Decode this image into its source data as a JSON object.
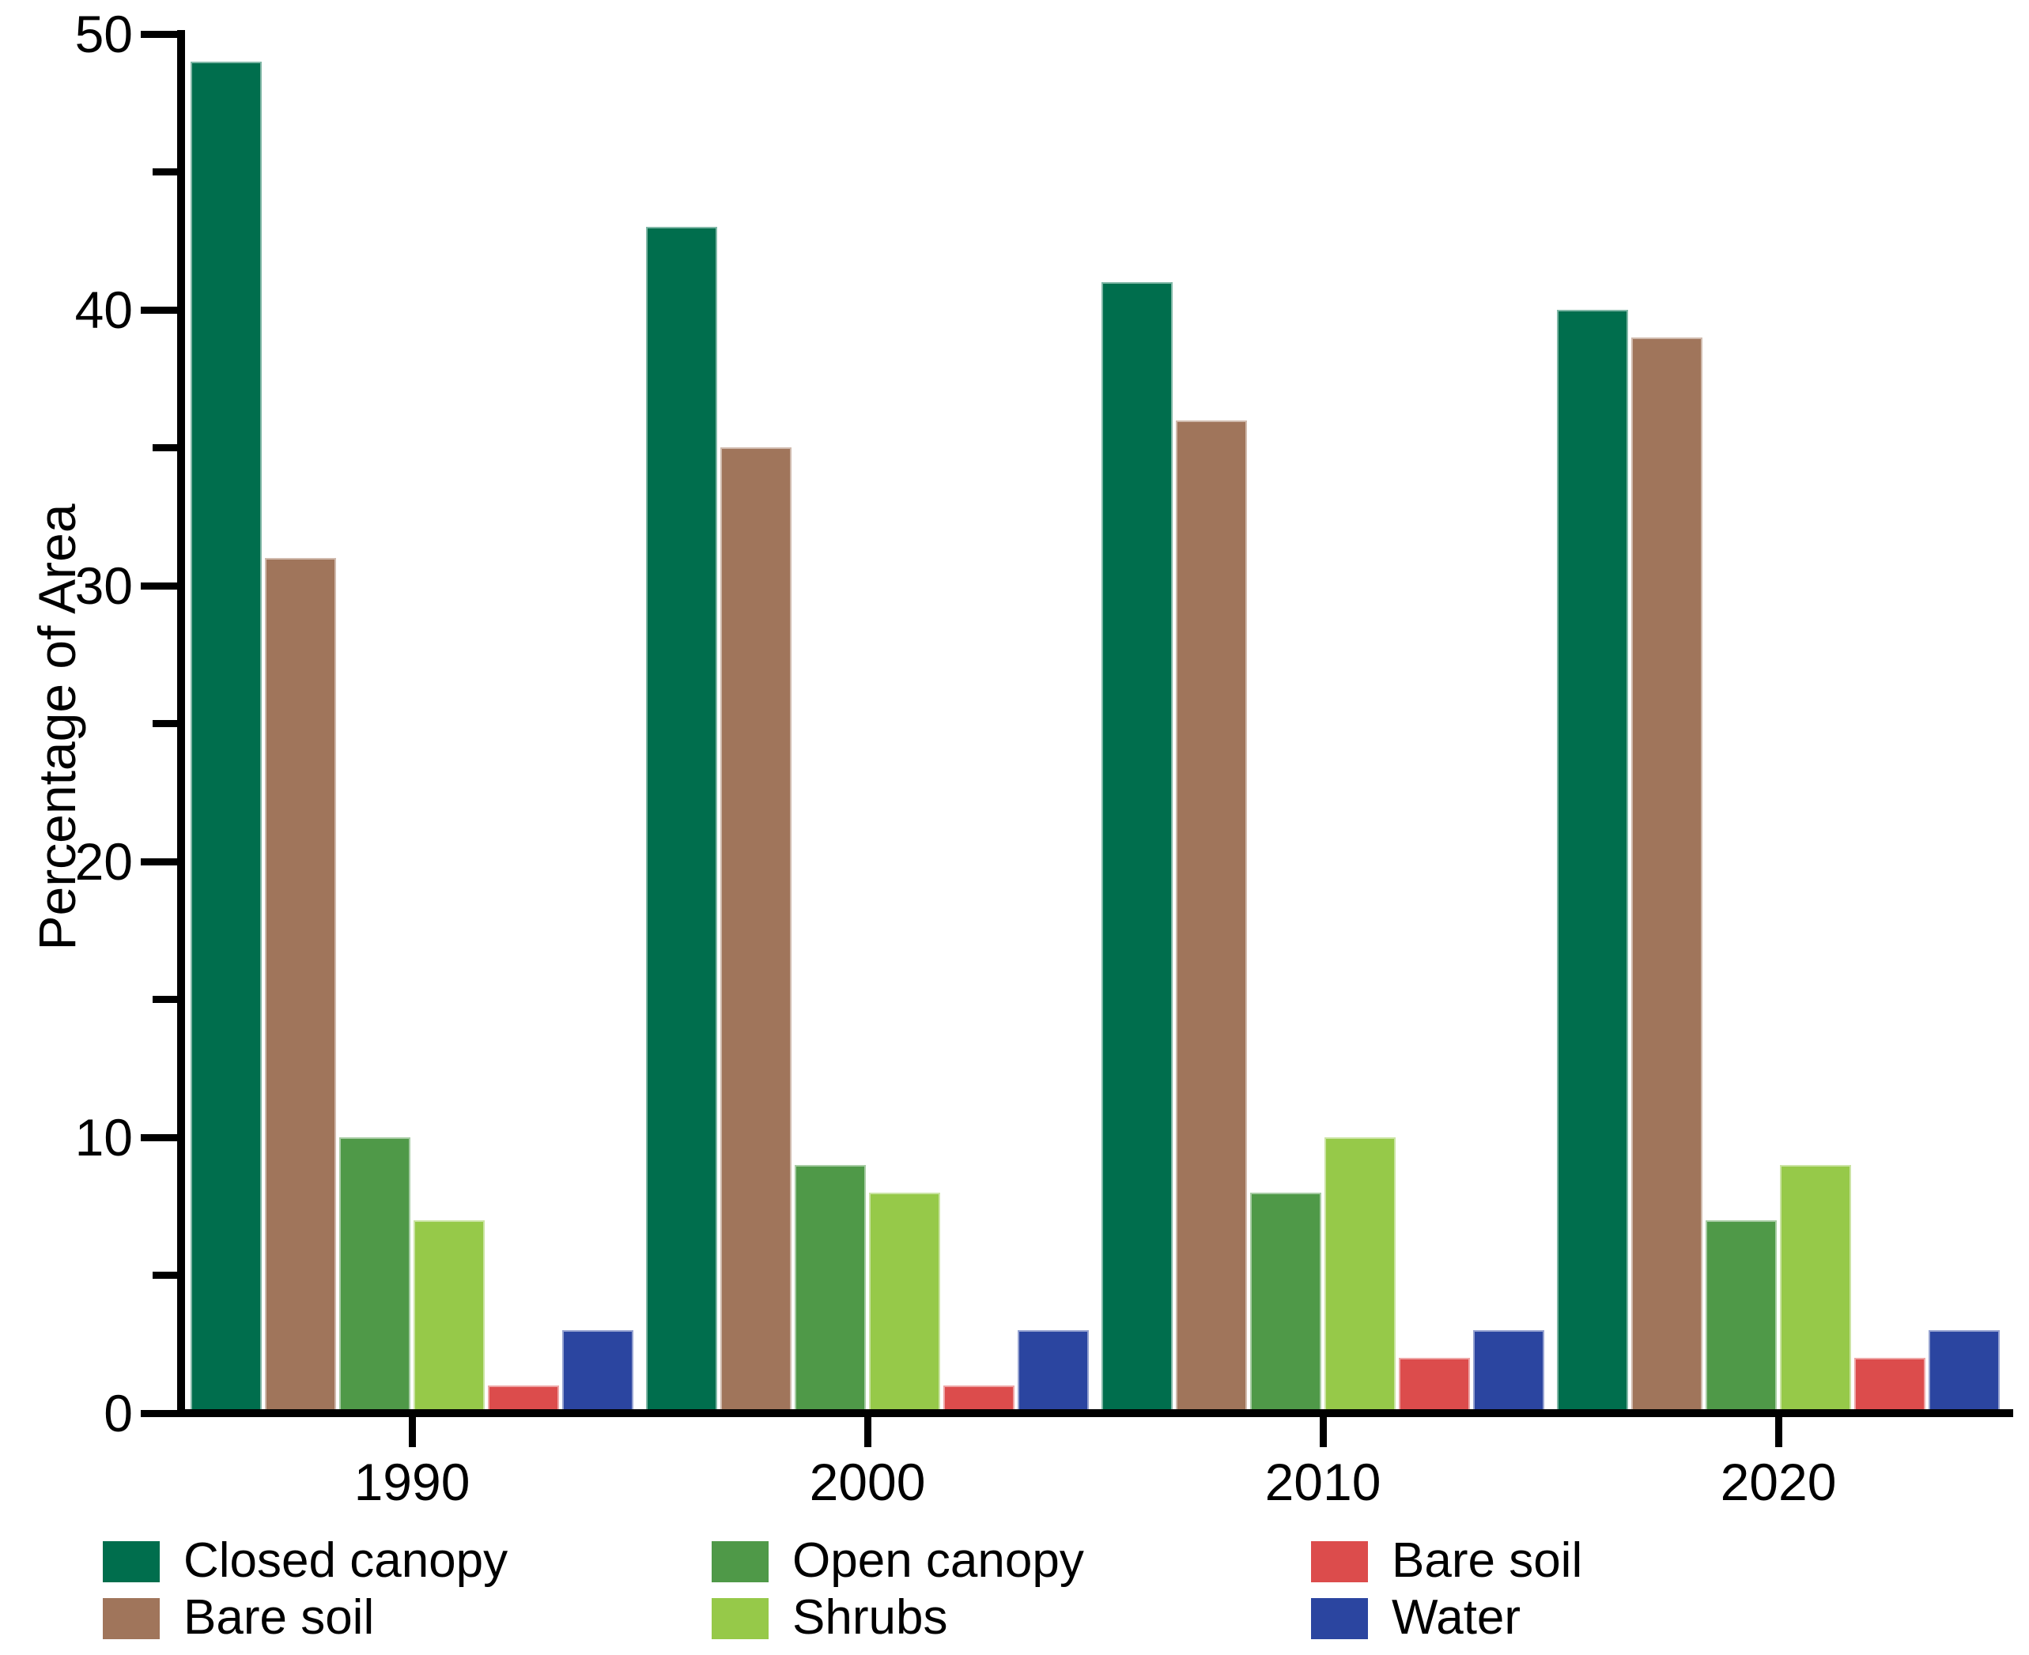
{
  "chart_data": {
    "type": "bar",
    "title": "",
    "xlabel": "",
    "ylabel": "Percentage of Area",
    "ylim": [
      0,
      50
    ],
    "grid": false,
    "y_major_ticks": [
      0,
      10,
      20,
      30,
      40,
      50
    ],
    "y_minor_ticks": [
      5,
      15,
      25,
      35,
      45
    ],
    "categories": [
      "1990",
      "2000",
      "2010",
      "2020"
    ],
    "series": [
      {
        "key": "closed-canopy",
        "name": "Closed canopy",
        "color": "#006E4D",
        "values": [
          49,
          43,
          41,
          40
        ]
      },
      {
        "key": "bare-soil-brown",
        "name": "Bare soil",
        "color": "#A0755B",
        "values": [
          31,
          35,
          36,
          39
        ]
      },
      {
        "key": "open-canopy",
        "name": "Open canopy",
        "color": "#4F9948",
        "values": [
          10,
          9,
          8,
          7
        ]
      },
      {
        "key": "shrubs",
        "name": "Shrubs",
        "color": "#96C949",
        "values": [
          7,
          8,
          10,
          9
        ]
      },
      {
        "key": "bare-soil-red",
        "name": "Bare soil",
        "color": "#DC4C4C",
        "values": [
          1,
          1,
          2,
          2
        ]
      },
      {
        "key": "water",
        "name": "Water",
        "color": "#2B45A0",
        "values": [
          3,
          3,
          3,
          3
        ]
      }
    ],
    "legend": {
      "position": "bottom",
      "columns": [
        [
          {
            "key": "closed-canopy",
            "label": "Closed canopy",
            "color": "#006E4D"
          },
          {
            "key": "bare-soil-brown",
            "label": "Bare soil",
            "color": "#A0755B"
          }
        ],
        [
          {
            "key": "open-canopy",
            "label": "Open canopy",
            "color": "#4F9948"
          },
          {
            "key": "shrubs",
            "label": "Shrubs",
            "color": "#96C949"
          }
        ],
        [
          {
            "key": "bare-soil-red",
            "label": "Bare soil",
            "color": "#DC4C4C"
          },
          {
            "key": "water",
            "label": "Water",
            "color": "#2B45A0"
          }
        ]
      ]
    }
  }
}
